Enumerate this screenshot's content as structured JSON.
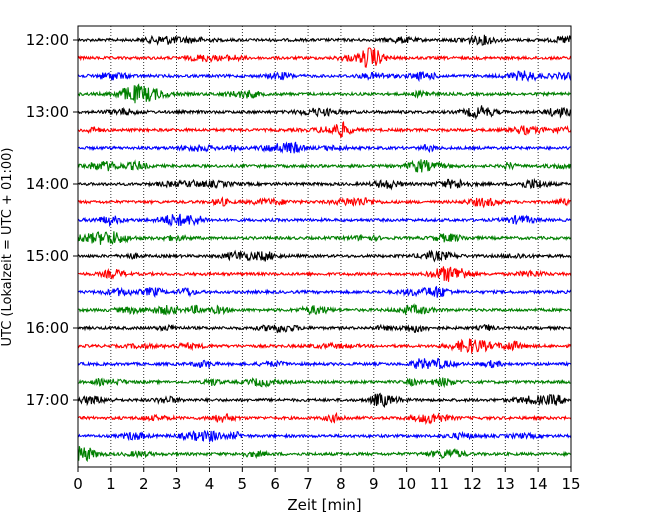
{
  "chart_data": {
    "type": "line",
    "title": "",
    "xlabel": "Zeit  [min]",
    "ylabel": "UTC (Lokalzeit = UTC + 01:00)",
    "xlim": [
      0,
      15
    ],
    "x_ticks": [
      0,
      1,
      2,
      3,
      4,
      5,
      6,
      7,
      8,
      9,
      10,
      11,
      12,
      13,
      14,
      15
    ],
    "x_tick_labels": [
      "0",
      "1",
      "2",
      "3",
      "4",
      "5",
      "6",
      "7",
      "8",
      "9",
      "10",
      "11",
      "12",
      "13",
      "14",
      "15"
    ],
    "y_tick_labels": [
      "12:00",
      "13:00",
      "14:00",
      "15:00",
      "16:00",
      "17:00"
    ],
    "trace_minutes_each": 15,
    "trace_colors": [
      "#000000",
      "#ff0000",
      "#0000ff",
      "#008000"
    ],
    "traces": [
      {
        "start": "12:00",
        "color": "#000000"
      },
      {
        "start": "12:15",
        "color": "#ff0000"
      },
      {
        "start": "12:30",
        "color": "#0000ff"
      },
      {
        "start": "12:45",
        "color": "#008000"
      },
      {
        "start": "13:00",
        "color": "#000000"
      },
      {
        "start": "13:15",
        "color": "#ff0000"
      },
      {
        "start": "13:30",
        "color": "#0000ff"
      },
      {
        "start": "13:45",
        "color": "#008000"
      },
      {
        "start": "14:00",
        "color": "#000000"
      },
      {
        "start": "14:15",
        "color": "#ff0000"
      },
      {
        "start": "14:30",
        "color": "#0000ff"
      },
      {
        "start": "14:45",
        "color": "#008000"
      },
      {
        "start": "15:00",
        "color": "#000000"
      },
      {
        "start": "15:15",
        "color": "#ff0000"
      },
      {
        "start": "15:30",
        "color": "#0000ff"
      },
      {
        "start": "15:45",
        "color": "#008000"
      },
      {
        "start": "16:00",
        "color": "#000000"
      },
      {
        "start": "16:15",
        "color": "#ff0000"
      },
      {
        "start": "16:30",
        "color": "#0000ff"
      },
      {
        "start": "16:45",
        "color": "#008000"
      },
      {
        "start": "17:00",
        "color": "#000000"
      },
      {
        "start": "17:15",
        "color": "#ff0000"
      },
      {
        "start": "17:30",
        "color": "#0000ff"
      },
      {
        "start": "17:45",
        "color": "#008000"
      }
    ],
    "grid": "vertical dotted at each minute",
    "legend": "none"
  }
}
